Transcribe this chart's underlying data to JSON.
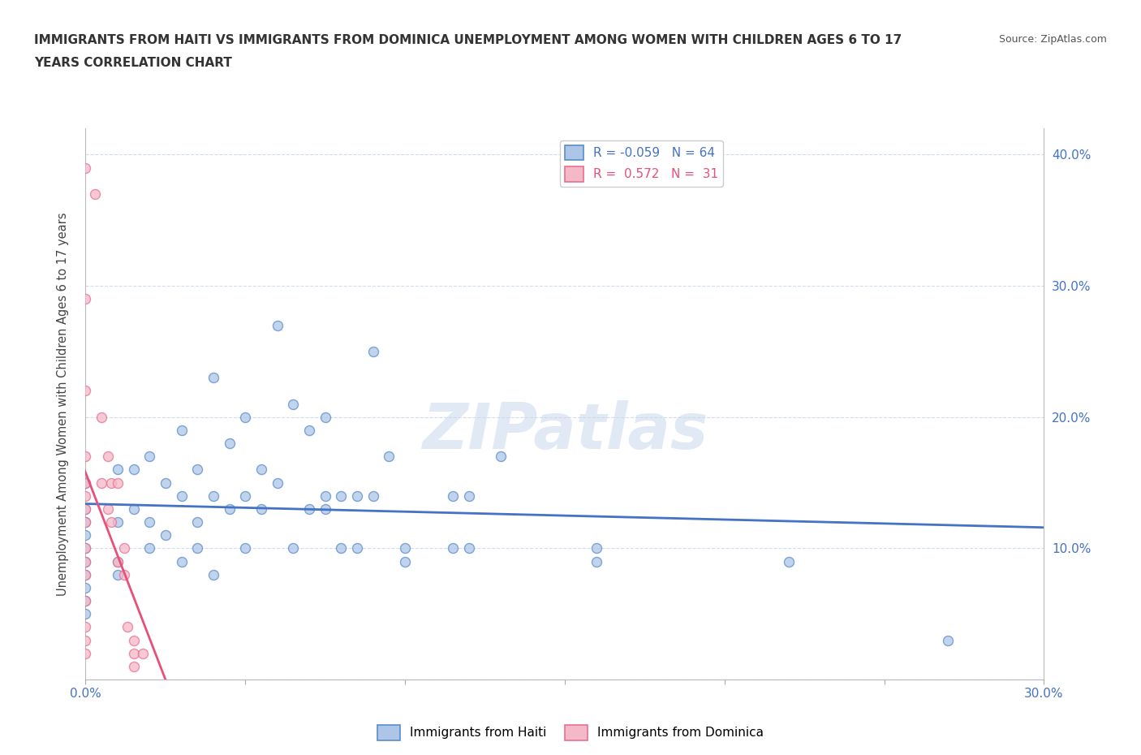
{
  "title_line1": "IMMIGRANTS FROM HAITI VS IMMIGRANTS FROM DOMINICA UNEMPLOYMENT AMONG WOMEN WITH CHILDREN AGES 6 TO 17",
  "title_line2": "YEARS CORRELATION CHART",
  "ylabel": "Unemployment Among Women with Children Ages 6 to 17 years",
  "source_text": "Source: ZipAtlas.com",
  "x_min": 0.0,
  "x_max": 0.3,
  "y_min": 0.0,
  "y_max": 0.42,
  "x_ticks": [
    0.0,
    0.05,
    0.1,
    0.15,
    0.2,
    0.25,
    0.3
  ],
  "y_ticks": [
    0.0,
    0.1,
    0.2,
    0.3,
    0.4
  ],
  "y_tick_labels_right": [
    "",
    "10.0%",
    "20.0%",
    "30.0%",
    "40.0%"
  ],
  "haiti_color": "#adc6e8",
  "dominica_color": "#f5b8c8",
  "haiti_edge_color": "#5b8cc8",
  "dominica_edge_color": "#e87090",
  "haiti_line_color": "#4472c4",
  "dominica_line_color": "#e8507a",
  "legend_haiti_r": "-0.059",
  "legend_haiti_n": "64",
  "legend_dominica_r": "0.572",
  "legend_dominica_n": "31",
  "haiti_points": [
    [
      0.0,
      0.13
    ],
    [
      0.0,
      0.11
    ],
    [
      0.0,
      0.09
    ],
    [
      0.0,
      0.08
    ],
    [
      0.0,
      0.07
    ],
    [
      0.0,
      0.06
    ],
    [
      0.0,
      0.05
    ],
    [
      0.0,
      0.1
    ],
    [
      0.0,
      0.12
    ],
    [
      0.0,
      0.15
    ],
    [
      0.01,
      0.16
    ],
    [
      0.01,
      0.12
    ],
    [
      0.01,
      0.09
    ],
    [
      0.01,
      0.08
    ],
    [
      0.015,
      0.16
    ],
    [
      0.015,
      0.13
    ],
    [
      0.02,
      0.17
    ],
    [
      0.02,
      0.12
    ],
    [
      0.02,
      0.1
    ],
    [
      0.025,
      0.15
    ],
    [
      0.025,
      0.11
    ],
    [
      0.03,
      0.19
    ],
    [
      0.03,
      0.14
    ],
    [
      0.03,
      0.09
    ],
    [
      0.035,
      0.16
    ],
    [
      0.035,
      0.12
    ],
    [
      0.035,
      0.1
    ],
    [
      0.04,
      0.23
    ],
    [
      0.04,
      0.14
    ],
    [
      0.04,
      0.08
    ],
    [
      0.045,
      0.18
    ],
    [
      0.045,
      0.13
    ],
    [
      0.05,
      0.2
    ],
    [
      0.05,
      0.14
    ],
    [
      0.05,
      0.1
    ],
    [
      0.055,
      0.16
    ],
    [
      0.055,
      0.13
    ],
    [
      0.06,
      0.27
    ],
    [
      0.06,
      0.15
    ],
    [
      0.065,
      0.21
    ],
    [
      0.065,
      0.1
    ],
    [
      0.07,
      0.19
    ],
    [
      0.07,
      0.13
    ],
    [
      0.075,
      0.2
    ],
    [
      0.075,
      0.13
    ],
    [
      0.075,
      0.14
    ],
    [
      0.08,
      0.14
    ],
    [
      0.08,
      0.1
    ],
    [
      0.085,
      0.14
    ],
    [
      0.085,
      0.1
    ],
    [
      0.09,
      0.25
    ],
    [
      0.09,
      0.14
    ],
    [
      0.095,
      0.17
    ],
    [
      0.1,
      0.09
    ],
    [
      0.1,
      0.1
    ],
    [
      0.115,
      0.14
    ],
    [
      0.115,
      0.1
    ],
    [
      0.12,
      0.14
    ],
    [
      0.12,
      0.1
    ],
    [
      0.13,
      0.17
    ],
    [
      0.16,
      0.09
    ],
    [
      0.16,
      0.1
    ],
    [
      0.22,
      0.09
    ],
    [
      0.27,
      0.03
    ]
  ],
  "dominica_points": [
    [
      0.0,
      0.39
    ],
    [
      0.0,
      0.29
    ],
    [
      0.0,
      0.22
    ],
    [
      0.0,
      0.17
    ],
    [
      0.0,
      0.15
    ],
    [
      0.0,
      0.14
    ],
    [
      0.0,
      0.13
    ],
    [
      0.0,
      0.12
    ],
    [
      0.0,
      0.1
    ],
    [
      0.0,
      0.09
    ],
    [
      0.0,
      0.08
    ],
    [
      0.0,
      0.06
    ],
    [
      0.0,
      0.04
    ],
    [
      0.0,
      0.03
    ],
    [
      0.0,
      0.02
    ],
    [
      0.003,
      0.37
    ],
    [
      0.005,
      0.2
    ],
    [
      0.005,
      0.15
    ],
    [
      0.007,
      0.17
    ],
    [
      0.007,
      0.13
    ],
    [
      0.008,
      0.15
    ],
    [
      0.008,
      0.12
    ],
    [
      0.01,
      0.15
    ],
    [
      0.01,
      0.09
    ],
    [
      0.012,
      0.1
    ],
    [
      0.012,
      0.08
    ],
    [
      0.013,
      0.04
    ],
    [
      0.015,
      0.03
    ],
    [
      0.015,
      0.02
    ],
    [
      0.015,
      0.01
    ],
    [
      0.018,
      0.02
    ]
  ],
  "background_color": "#ffffff",
  "grid_color": "#c8d4e8",
  "watermark_text": "ZIPatlas",
  "watermark_color": "#c8d8ec"
}
